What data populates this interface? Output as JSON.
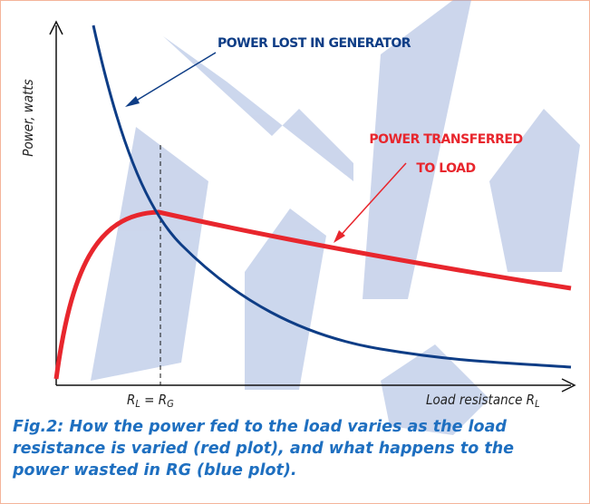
{
  "figure": {
    "y_axis_label": "Power, watts",
    "x_axis_label": {
      "text": "Load resistance R",
      "sub": "L"
    },
    "x_marker": {
      "r1": "R",
      "s1": "L",
      "eq": " = ",
      "r2": "R",
      "s2": "G"
    },
    "annotation_blue": "POWER LOST IN GENERATOR",
    "annotation_red": [
      "POWER TRANSFERRED",
      "TO LOAD"
    ],
    "caption": [
      "Fig.2: How the power fed to the load varies as the load",
      "resistance is varied (red plot), and what happens to the",
      "power wasted in RG (blue plot)."
    ]
  }
}
